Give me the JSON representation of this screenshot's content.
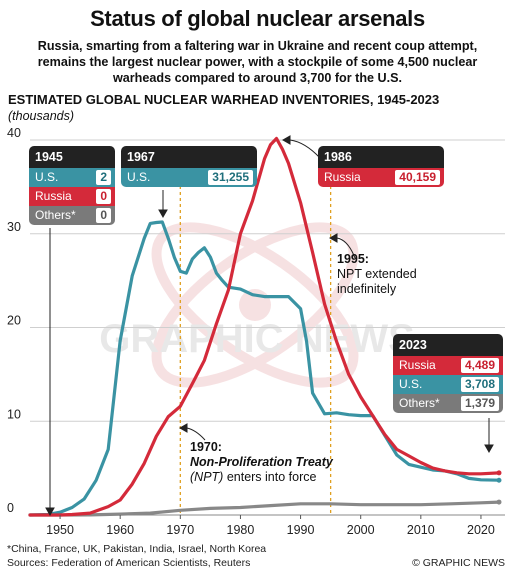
{
  "header": {
    "title": "Status of global nuclear arsenals",
    "subtitle": "Russia, smarting from a faltering war in Ukraine and recent coup attempt, remains the largest nuclear power, with a stockpile of some 4,500 nuclear warheads compared to around 3,700 for the U.S.",
    "chart_heading": "ESTIMATED GLOBAL NUCLEAR WARHEAD INVENTORIES, 1945-2023",
    "units": "(thousands)"
  },
  "callouts": {
    "y1945": {
      "year": "1945",
      "rows": [
        {
          "label": "U.S.",
          "value": "2"
        },
        {
          "label": "Russia",
          "value": "0"
        },
        {
          "label": "Others*",
          "value": "0"
        }
      ]
    },
    "y1967": {
      "year": "1967",
      "rows": [
        {
          "label": "U.S.",
          "value": "31,255"
        }
      ]
    },
    "y1986": {
      "year": "1986",
      "rows": [
        {
          "label": "Russia",
          "value": "40,159"
        }
      ]
    },
    "y2023": {
      "year": "2023",
      "rows": [
        {
          "label": "Russia",
          "value": "4,489"
        },
        {
          "label": "U.S.",
          "value": "3,708"
        },
        {
          "label": "Others*",
          "value": "1,379"
        }
      ]
    }
  },
  "annotations": {
    "npt1995": {
      "year": "1995:",
      "text": "NPT extended indefinitely"
    },
    "npt1970": {
      "year": "1970:",
      "title": "Non-Proliferation Treaty",
      "abbr": "(NPT)",
      "text": "enters into force"
    }
  },
  "footer": {
    "footnote": "*China, France, UK, Pakistan, India, Israel, North Korea",
    "sources": "Sources: Federation of American Scientists, Reuters",
    "credit": "© GRAPHIC NEWS"
  },
  "colors": {
    "us": "#3a93a3",
    "russia": "#d42a3a",
    "others": "#888888",
    "guide": "#e0a020"
  },
  "chart_data": {
    "type": "line",
    "title": "ESTIMATED GLOBAL NUCLEAR WARHEAD INVENTORIES, 1945-2023",
    "ylabel": "(thousands)",
    "xlim": [
      1945,
      2024
    ],
    "ylim": [
      0,
      40
    ],
    "x_ticks": [
      "1950",
      "1960",
      "1970",
      "1980",
      "1990",
      "2000",
      "2010",
      "2020"
    ],
    "y_ticks": [
      "0",
      "10",
      "20",
      "30",
      "40"
    ],
    "grid": "horizontal",
    "reference_lines": [
      1970,
      1995
    ],
    "series": [
      {
        "name": "U.S.",
        "color": "#3a93a3",
        "x": [
          1945,
          1948,
          1950,
          1952,
          1954,
          1956,
          1958,
          1960,
          1962,
          1964,
          1965,
          1966,
          1967,
          1968,
          1969,
          1970,
          1971,
          1972,
          1973,
          1974,
          1975,
          1976,
          1977,
          1978,
          1980,
          1982,
          1984,
          1986,
          1988,
          1990,
          1991,
          1992,
          1994,
          1996,
          1998,
          2000,
          2002,
          2004,
          2006,
          2008,
          2010,
          2012,
          2014,
          2016,
          2018,
          2020,
          2023
        ],
        "y": [
          0.002,
          0.05,
          0.3,
          0.8,
          1.7,
          3.7,
          7.0,
          18.6,
          25.5,
          29.5,
          31.1,
          31.2,
          31.255,
          29.5,
          27.5,
          26.0,
          25.8,
          27.3,
          28.0,
          28.5,
          27.5,
          25.8,
          25.0,
          24.3,
          24.1,
          23.5,
          23.3,
          23.3,
          23.3,
          22.0,
          18.5,
          13.0,
          10.8,
          10.9,
          10.7,
          10.6,
          10.6,
          8.5,
          6.4,
          5.4,
          5.1,
          4.8,
          4.7,
          4.4,
          3.9,
          3.75,
          3.708
        ]
      },
      {
        "name": "Russia",
        "color": "#d42a3a",
        "x": [
          1945,
          1948,
          1949,
          1950,
          1952,
          1955,
          1958,
          1960,
          1962,
          1964,
          1966,
          1968,
          1970,
          1972,
          1974,
          1976,
          1978,
          1980,
          1982,
          1984,
          1985,
          1986,
          1987,
          1988,
          1990,
          1992,
          1994,
          1996,
          1998,
          2000,
          2002,
          2004,
          2006,
          2008,
          2010,
          2012,
          2014,
          2016,
          2018,
          2020,
          2023
        ],
        "y": [
          0,
          0,
          0,
          0.005,
          0.05,
          0.2,
          0.9,
          1.6,
          3.3,
          5.5,
          8.4,
          10.5,
          11.6,
          14.0,
          16.5,
          20.4,
          24.0,
          30.0,
          33.5,
          38.0,
          39.5,
          40.159,
          39.0,
          37.5,
          33.3,
          28.0,
          22.5,
          18.5,
          15.0,
          12.6,
          10.6,
          8.6,
          7.0,
          6.3,
          5.6,
          5.0,
          4.7,
          4.5,
          4.4,
          4.4,
          4.489
        ]
      },
      {
        "name": "Others*",
        "color": "#888888",
        "x": [
          1945,
          1950,
          1955,
          1960,
          1965,
          1970,
          1975,
          1980,
          1985,
          1990,
          1995,
          2000,
          2005,
          2010,
          2015,
          2020,
          2023
        ],
        "y": [
          0,
          0,
          0.01,
          0.1,
          0.2,
          0.5,
          0.7,
          0.8,
          1.0,
          1.2,
          1.2,
          1.1,
          1.1,
          1.1,
          1.2,
          1.3,
          1.379
        ]
      }
    ]
  }
}
